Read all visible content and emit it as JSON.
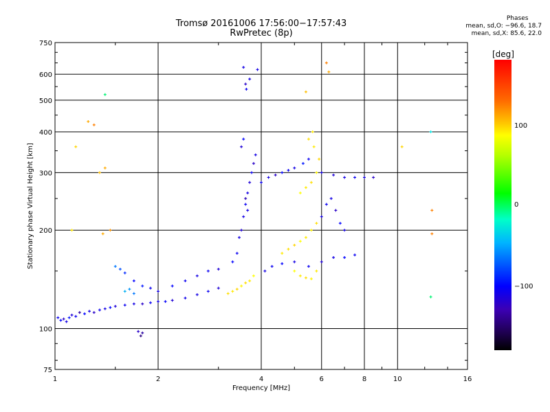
{
  "title_line1": "Tromsø 20161006 17:56:00−17:57:43",
  "title_line2": "RwPretec (8p)",
  "phases": {
    "header": "Phases",
    "line1": "mean, sd,O:  −96.6, 18.7",
    "line2": "mean, sd,X:  85.6, 22.0"
  },
  "colorbar": {
    "title": "[deg]",
    "ticks": [
      "100",
      "0",
      "−100"
    ],
    "colors": {
      "red": "#ff0000",
      "yellow": "#ffff00",
      "green": "#00ff00",
      "cyan": "#00ffff",
      "blue": "#0000ff",
      "purple": "#3c00b4",
      "black": "#000000"
    }
  },
  "chart_data": {
    "type": "scatter",
    "xlabel": "Frequency [MHz]",
    "ylabel": "Stationary phase Virtual Height [km]",
    "x_scale": "log",
    "y_scale": "log",
    "xlim": [
      1,
      16
    ],
    "ylim": [
      75,
      750
    ],
    "x_ticks": [
      "1",
      "2",
      "4",
      "6",
      "8",
      "10",
      "16"
    ],
    "x_tick_values": [
      1,
      2,
      4,
      6,
      8,
      10,
      16
    ],
    "y_ticks": [
      "75",
      "100",
      "200",
      "300",
      "400",
      "500",
      "600",
      "750"
    ],
    "y_tick_values": [
      75,
      100,
      200,
      300,
      400,
      500,
      600,
      750
    ],
    "grid": true,
    "color_by": "phase [deg]",
    "points": [
      [
        1.02,
        108,
        -95
      ],
      [
        1.04,
        106,
        -90
      ],
      [
        1.06,
        107,
        -110
      ],
      [
        1.08,
        105,
        -100
      ],
      [
        1.1,
        108,
        -85
      ],
      [
        1.12,
        110,
        -105
      ],
      [
        1.15,
        109,
        -95
      ],
      [
        1.18,
        112,
        -120
      ],
      [
        1.22,
        111,
        -90
      ],
      [
        1.26,
        113,
        -100
      ],
      [
        1.3,
        112,
        -110
      ],
      [
        1.35,
        114,
        -95
      ],
      [
        1.4,
        115,
        -100
      ],
      [
        1.45,
        116,
        -88
      ],
      [
        1.5,
        117,
        -105
      ],
      [
        1.6,
        118,
        -95
      ],
      [
        1.7,
        119,
        -100
      ],
      [
        1.8,
        119,
        -110
      ],
      [
        1.9,
        120,
        -95
      ],
      [
        2.0,
        121,
        -100
      ],
      [
        2.1,
        121,
        -92
      ],
      [
        2.2,
        122,
        -105
      ],
      [
        2.4,
        124,
        -98
      ],
      [
        2.6,
        127,
        -100
      ],
      [
        2.8,
        130,
        -95
      ],
      [
        3.0,
        133,
        -105
      ],
      [
        1.5,
        155,
        -60
      ],
      [
        1.55,
        152,
        -70
      ],
      [
        1.6,
        148,
        -80
      ],
      [
        1.7,
        140,
        -90
      ],
      [
        1.8,
        135,
        -85
      ],
      [
        1.9,
        133,
        -95
      ],
      [
        2.0,
        130,
        -100
      ],
      [
        2.2,
        135,
        -90
      ],
      [
        2.4,
        140,
        -95
      ],
      [
        2.6,
        145,
        -100
      ],
      [
        2.8,
        150,
        -95
      ],
      [
        3.0,
        152,
        -105
      ],
      [
        1.6,
        130,
        -40
      ],
      [
        1.65,
        132,
        -50
      ],
      [
        1.7,
        128,
        -60
      ],
      [
        1.75,
        98,
        -110
      ],
      [
        1.78,
        95,
        -130
      ],
      [
        1.8,
        97,
        -120
      ],
      [
        3.2,
        128,
        115
      ],
      [
        3.3,
        130,
        110
      ],
      [
        3.4,
        132,
        120
      ],
      [
        3.5,
        135,
        105
      ],
      [
        3.6,
        138,
        115
      ],
      [
        3.7,
        140,
        110
      ],
      [
        3.8,
        145,
        100
      ],
      [
        3.3,
        160,
        -90
      ],
      [
        3.4,
        170,
        -95
      ],
      [
        3.45,
        190,
        -100
      ],
      [
        3.5,
        200,
        -105
      ],
      [
        3.55,
        220,
        -100
      ],
      [
        3.6,
        240,
        -95
      ],
      [
        3.65,
        260,
        -100
      ],
      [
        3.7,
        280,
        -105
      ],
      [
        3.75,
        300,
        -95
      ],
      [
        3.8,
        320,
        -110
      ],
      [
        3.85,
        340,
        -100
      ],
      [
        3.5,
        360,
        -105
      ],
      [
        3.55,
        380,
        -90
      ],
      [
        3.6,
        250,
        -115
      ],
      [
        3.65,
        230,
        -100
      ],
      [
        3.55,
        630,
        -100
      ],
      [
        3.6,
        560,
        -110
      ],
      [
        3.62,
        540,
        -95
      ],
      [
        3.7,
        580,
        -100
      ],
      [
        3.9,
        620,
        -100
      ],
      [
        4.0,
        280,
        -95
      ],
      [
        4.2,
        290,
        -100
      ],
      [
        4.4,
        295,
        -110
      ],
      [
        4.6,
        300,
        -90
      ],
      [
        4.8,
        305,
        -95
      ],
      [
        5.0,
        310,
        -100
      ],
      [
        5.3,
        320,
        -85
      ],
      [
        5.5,
        330,
        -95
      ],
      [
        6.0,
        300,
        -100
      ],
      [
        6.5,
        295,
        -105
      ],
      [
        7.0,
        290,
        -100
      ],
      [
        7.5,
        290,
        -95
      ],
      [
        8.0,
        290,
        -100
      ],
      [
        8.5,
        290,
        -110
      ],
      [
        4.1,
        150,
        -100
      ],
      [
        4.3,
        155,
        -95
      ],
      [
        4.6,
        158,
        -90
      ],
      [
        5.0,
        160,
        -100
      ],
      [
        5.5,
        155,
        -95
      ],
      [
        6.0,
        160,
        -105
      ],
      [
        6.5,
        165,
        -100
      ],
      [
        7.0,
        165,
        -90
      ],
      [
        7.5,
        168,
        -95
      ],
      [
        4.6,
        170,
        110
      ],
      [
        4.8,
        175,
        115
      ],
      [
        5.0,
        180,
        120
      ],
      [
        5.2,
        185,
        100
      ],
      [
        5.4,
        190,
        110
      ],
      [
        5.6,
        200,
        105
      ],
      [
        5.8,
        210,
        115
      ],
      [
        5.0,
        150,
        100
      ],
      [
        5.2,
        145,
        110
      ],
      [
        5.4,
        143,
        115
      ],
      [
        5.6,
        142,
        105
      ],
      [
        5.8,
        150,
        110
      ],
      [
        5.2,
        260,
        100
      ],
      [
        5.4,
        270,
        110
      ],
      [
        5.6,
        280,
        115
      ],
      [
        5.8,
        300,
        105
      ],
      [
        5.9,
        330,
        120
      ],
      [
        5.7,
        360,
        110
      ],
      [
        5.5,
        380,
        115
      ],
      [
        5.65,
        400,
        110
      ],
      [
        6.0,
        220,
        -100
      ],
      [
        6.2,
        240,
        -95
      ],
      [
        6.4,
        250,
        -100
      ],
      [
        6.6,
        230,
        -110
      ],
      [
        6.8,
        210,
        -90
      ],
      [
        7.0,
        200,
        -100
      ],
      [
        1.25,
        430,
        140
      ],
      [
        1.3,
        420,
        150
      ],
      [
        1.35,
        300,
        130
      ],
      [
        1.4,
        310,
        140
      ],
      [
        1.15,
        360,
        120
      ],
      [
        1.12,
        200,
        110
      ],
      [
        1.38,
        195,
        140
      ],
      [
        1.45,
        200,
        145
      ],
      [
        12.5,
        400,
        -20
      ],
      [
        12.5,
        125,
        -10
      ],
      [
        12.6,
        230,
        150
      ],
      [
        12.6,
        195,
        150
      ],
      [
        10.3,
        360,
        120
      ],
      [
        1.4,
        520,
        -10
      ],
      [
        5.4,
        530,
        130
      ],
      [
        6.2,
        650,
        150
      ],
      [
        6.3,
        610,
        140
      ]
    ]
  }
}
